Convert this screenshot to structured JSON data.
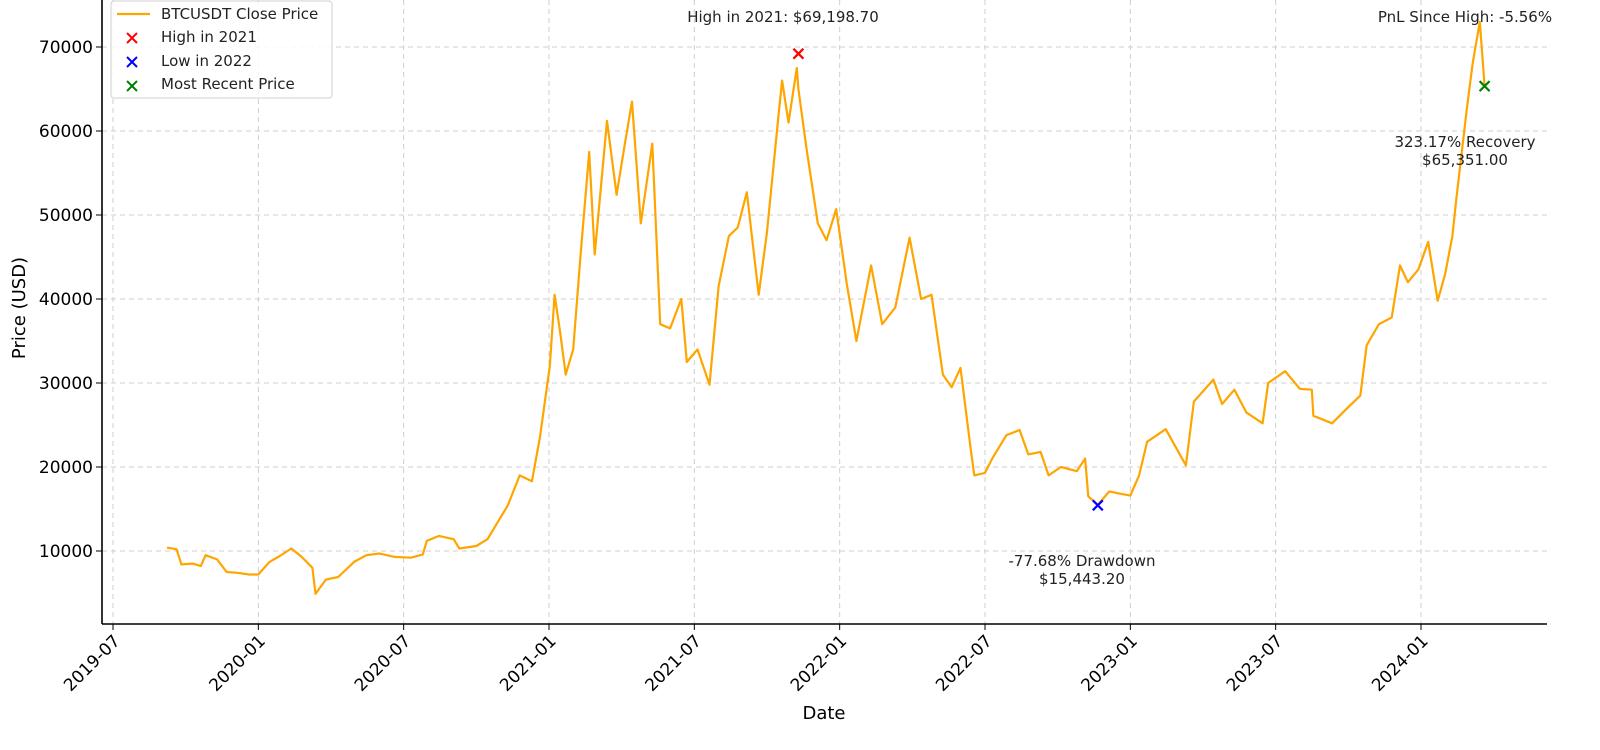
{
  "chart_data": {
    "type": "line",
    "title": "",
    "xlabel": "Date",
    "ylabel": "Price (USD)",
    "x_ticks": [
      "2019-07",
      "2020-01",
      "2020-07",
      "2021-01",
      "2021-07",
      "2022-01",
      "2022-07",
      "2023-01",
      "2023-07",
      "2024-01"
    ],
    "y_ticks": [
      10000,
      20000,
      30000,
      40000,
      50000,
      60000,
      70000
    ],
    "ylim": [
      1300,
      75500
    ],
    "xlim": [
      "2019-06-20",
      "2024-05-01"
    ],
    "grid": true,
    "legend_position": "upper left",
    "series": [
      {
        "name": "BTCUSDT Close Price",
        "color": "#FFA500",
        "points": [
          [
            "2019-09-08",
            10400
          ],
          [
            "2019-09-20",
            10200
          ],
          [
            "2019-09-26",
            8400
          ],
          [
            "2019-10-10",
            8500
          ],
          [
            "2019-10-20",
            8200
          ],
          [
            "2019-10-26",
            9500
          ],
          [
            "2019-11-10",
            9000
          ],
          [
            "2019-11-22",
            7500
          ],
          [
            "2019-12-05",
            7400
          ],
          [
            "2019-12-20",
            7200
          ],
          [
            "2020-01-01",
            7200
          ],
          [
            "2020-01-15",
            8700
          ],
          [
            "2020-01-28",
            9400
          ],
          [
            "2020-02-12",
            10300
          ],
          [
            "2020-02-25",
            9300
          ],
          [
            "2020-03-08",
            8000
          ],
          [
            "2020-03-12",
            4900
          ],
          [
            "2020-03-25",
            6600
          ],
          [
            "2020-04-10",
            6900
          ],
          [
            "2020-04-30",
            8700
          ],
          [
            "2020-05-15",
            9500
          ],
          [
            "2020-06-01",
            9700
          ],
          [
            "2020-06-20",
            9300
          ],
          [
            "2020-07-10",
            9200
          ],
          [
            "2020-07-25",
            9600
          ],
          [
            "2020-07-30",
            11200
          ],
          [
            "2020-08-15",
            11800
          ],
          [
            "2020-09-03",
            11400
          ],
          [
            "2020-09-10",
            10300
          ],
          [
            "2020-10-01",
            10600
          ],
          [
            "2020-10-15",
            11400
          ],
          [
            "2020-10-25",
            13000
          ],
          [
            "2020-11-10",
            15400
          ],
          [
            "2020-11-25",
            19000
          ],
          [
            "2020-12-10",
            18300
          ],
          [
            "2020-12-20",
            23500
          ],
          [
            "2021-01-02",
            32000
          ],
          [
            "2021-01-08",
            40500
          ],
          [
            "2021-01-15",
            36000
          ],
          [
            "2021-01-22",
            31000
          ],
          [
            "2021-02-01",
            34000
          ],
          [
            "2021-02-10",
            45000
          ],
          [
            "2021-02-21",
            57500
          ],
          [
            "2021-02-28",
            45300
          ],
          [
            "2021-03-13",
            61200
          ],
          [
            "2021-03-25",
            52400
          ],
          [
            "2021-04-05",
            58500
          ],
          [
            "2021-04-14",
            63500
          ],
          [
            "2021-04-25",
            49000
          ],
          [
            "2021-05-09",
            58500
          ],
          [
            "2021-05-19",
            37000
          ],
          [
            "2021-06-01",
            36500
          ],
          [
            "2021-06-15",
            40000
          ],
          [
            "2021-06-22",
            32500
          ],
          [
            "2021-07-05",
            34000
          ],
          [
            "2021-07-20",
            29800
          ],
          [
            "2021-08-01",
            41500
          ],
          [
            "2021-08-14",
            47500
          ],
          [
            "2021-08-25",
            48500
          ],
          [
            "2021-09-06",
            52700
          ],
          [
            "2021-09-21",
            40500
          ],
          [
            "2021-10-01",
            48000
          ],
          [
            "2021-10-15",
            61500
          ],
          [
            "2021-10-20",
            66000
          ],
          [
            "2021-10-28",
            61000
          ],
          [
            "2021-11-08",
            67500
          ],
          [
            "2021-11-10",
            65000
          ],
          [
            "2021-11-20",
            58000
          ],
          [
            "2021-12-04",
            49000
          ],
          [
            "2021-12-15",
            47000
          ],
          [
            "2021-12-27",
            50700
          ],
          [
            "2022-01-10",
            41800
          ],
          [
            "2022-01-22",
            35000
          ],
          [
            "2022-02-10",
            44000
          ],
          [
            "2022-02-24",
            37000
          ],
          [
            "2022-03-10",
            39000
          ],
          [
            "2022-03-28",
            47300
          ],
          [
            "2022-04-12",
            40000
          ],
          [
            "2022-04-25",
            40500
          ],
          [
            "2022-05-09",
            31000
          ],
          [
            "2022-05-20",
            29500
          ],
          [
            "2022-05-31",
            31800
          ],
          [
            "2022-06-13",
            22500
          ],
          [
            "2022-06-18",
            19000
          ],
          [
            "2022-07-01",
            19300
          ],
          [
            "2022-07-10",
            21000
          ],
          [
            "2022-07-28",
            23800
          ],
          [
            "2022-08-14",
            24400
          ],
          [
            "2022-08-25",
            21500
          ],
          [
            "2022-09-10",
            21800
          ],
          [
            "2022-09-20",
            19000
          ],
          [
            "2022-10-05",
            20000
          ],
          [
            "2022-10-25",
            19500
          ],
          [
            "2022-11-05",
            21000
          ],
          [
            "2022-11-09",
            16500
          ],
          [
            "2022-11-21",
            15500
          ],
          [
            "2022-12-05",
            17100
          ],
          [
            "2022-12-20",
            16800
          ],
          [
            "2023-01-01",
            16600
          ],
          [
            "2023-01-12",
            19000
          ],
          [
            "2023-01-22",
            23000
          ],
          [
            "2023-02-15",
            24500
          ],
          [
            "2023-03-10",
            20200
          ],
          [
            "2023-03-20",
            27800
          ],
          [
            "2023-04-14",
            30400
          ],
          [
            "2023-04-25",
            27500
          ],
          [
            "2023-05-10",
            29200
          ],
          [
            "2023-05-25",
            26500
          ],
          [
            "2023-06-15",
            25200
          ],
          [
            "2023-06-22",
            30000
          ],
          [
            "2023-07-13",
            31400
          ],
          [
            "2023-08-01",
            29300
          ],
          [
            "2023-08-16",
            29200
          ],
          [
            "2023-08-18",
            26100
          ],
          [
            "2023-09-11",
            25200
          ],
          [
            "2023-09-30",
            27000
          ],
          [
            "2023-10-16",
            28500
          ],
          [
            "2023-10-24",
            34500
          ],
          [
            "2023-11-09",
            37000
          ],
          [
            "2023-11-25",
            37800
          ],
          [
            "2023-12-05",
            44000
          ],
          [
            "2023-12-15",
            42000
          ],
          [
            "2023-12-28",
            43500
          ],
          [
            "2024-01-10",
            46800
          ],
          [
            "2024-01-22",
            39800
          ],
          [
            "2024-02-01",
            43000
          ],
          [
            "2024-02-10",
            47500
          ],
          [
            "2024-02-15",
            52000
          ],
          [
            "2024-02-28",
            62500
          ],
          [
            "2024-03-05",
            68000
          ],
          [
            "2024-03-14",
            73000
          ],
          [
            "2024-03-20",
            65351
          ]
        ]
      }
    ],
    "markers": [
      {
        "name": "High in 2021",
        "date": "2021-11-10",
        "value": 69198.7,
        "color": "#FF0000"
      },
      {
        "name": "Low in 2022",
        "date": "2022-11-21",
        "value": 15443.2,
        "color": "#0000FF"
      },
      {
        "name": "Most Recent Price",
        "date": "2024-03-20",
        "value": 65351.0,
        "color": "#008000"
      }
    ],
    "annotations": [
      {
        "text": "High in 2021: $69,198.70"
      },
      {
        "text": "-77.68% Drawdown",
        "text2": "$15,443.20"
      },
      {
        "text": "323.17% Recovery",
        "text2": "$65,351.00"
      },
      {
        "text": "PnL Since High: -5.56%"
      }
    ]
  },
  "legend": {
    "items": [
      {
        "label": "BTCUSDT Close Price",
        "kind": "line",
        "color": "#FFA500"
      },
      {
        "label": "High in 2021",
        "kind": "x-marker",
        "color": "#FF0000"
      },
      {
        "label": "Low in 2022",
        "kind": "x-marker",
        "color": "#0000FF"
      },
      {
        "label": "Most Recent Price",
        "kind": "x-marker",
        "color": "#008000"
      }
    ]
  }
}
